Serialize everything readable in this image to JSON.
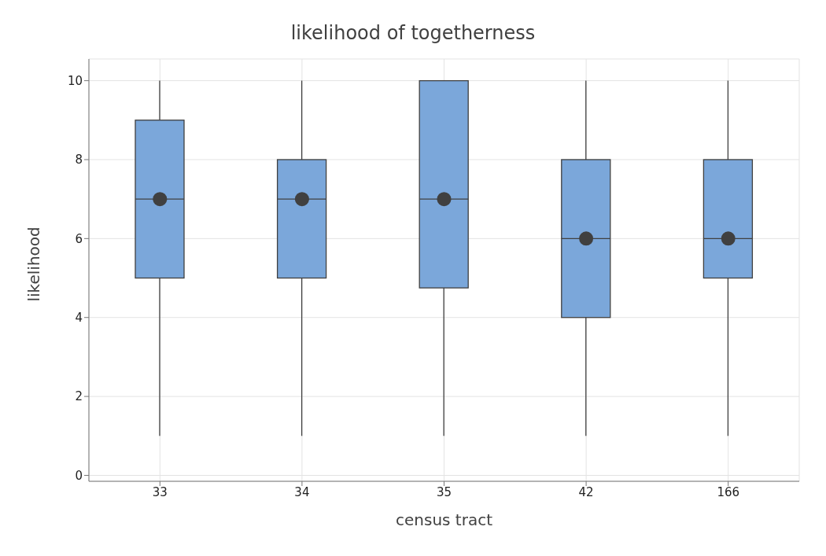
{
  "chart_data": {
    "type": "box",
    "title": "likelihood of togetherness",
    "xlabel": "census tract",
    "ylabel": "likelihood",
    "categories": [
      "33",
      "34",
      "35",
      "42",
      "166"
    ],
    "color": "#7ba7da",
    "ylim": [
      -0.15,
      10.55
    ],
    "yticks": [
      0,
      2,
      4,
      6,
      8,
      10
    ],
    "grid": true,
    "boxes": [
      {
        "low": 1,
        "q1": 5,
        "median": 7,
        "q3": 9,
        "high": 10,
        "mean": 7
      },
      {
        "low": 1,
        "q1": 5,
        "median": 7,
        "q3": 8,
        "high": 10,
        "mean": 7
      },
      {
        "low": 1,
        "q1": 4.75,
        "median": 7,
        "q3": 10,
        "high": 10,
        "mean": 7
      },
      {
        "low": 1,
        "q1": 4,
        "median": 6,
        "q3": 8,
        "high": 10,
        "mean": 6
      },
      {
        "low": 1,
        "q1": 5,
        "median": 6,
        "q3": 8,
        "high": 10,
        "mean": 6
      }
    ]
  }
}
